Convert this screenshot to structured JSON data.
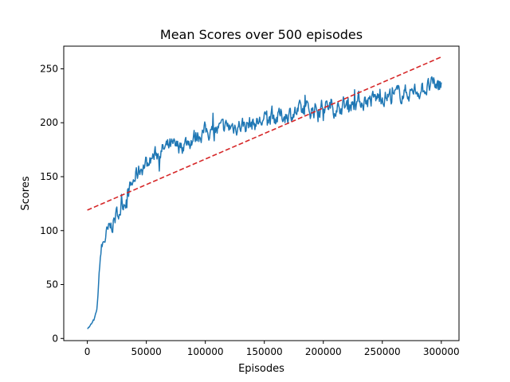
{
  "chart_data": {
    "type": "line",
    "title": "Mean Scores over 500 episodes",
    "xlabel": "Episodes",
    "ylabel": "Scores",
    "xlim": [
      -20000,
      315000
    ],
    "ylim": [
      -2,
      271
    ],
    "x_ticks": [
      0,
      50000,
      100000,
      150000,
      200000,
      250000,
      300000
    ],
    "y_ticks": [
      0,
      50,
      100,
      150,
      200,
      250
    ],
    "grid": false,
    "series": [
      {
        "color": "#1f77b4",
        "style": "solid",
        "noise": 8,
        "x": [
          0,
          2000,
          4000,
          6000,
          8000,
          9000,
          10000,
          11000,
          12000,
          14000,
          16000,
          20000,
          25000,
          30000,
          35000,
          40000,
          45000,
          50000,
          55000,
          60000,
          65000,
          70000,
          75000,
          80000,
          85000,
          90000,
          95000,
          100000,
          110000,
          120000,
          130000,
          140000,
          150000,
          160000,
          170000,
          180000,
          190000,
          200000,
          210000,
          220000,
          230000,
          240000,
          250000,
          260000,
          270000,
          280000,
          290000,
          300000
        ],
        "y": [
          10,
          11,
          14,
          18,
          26,
          40,
          60,
          75,
          82,
          90,
          95,
          103,
          115,
          125,
          135,
          148,
          158,
          162,
          168,
          172,
          175,
          178,
          176,
          180,
          182,
          186,
          190,
          192,
          193,
          196,
          198,
          199,
          202,
          205,
          208,
          210,
          212,
          215,
          214,
          217,
          220,
          221,
          224,
          225,
          228,
          230,
          233,
          236
        ]
      },
      {
        "color": "#d62728",
        "style": "dashed",
        "noise": 0,
        "x": [
          0,
          300000
        ],
        "y": [
          119,
          261
        ]
      }
    ]
  }
}
